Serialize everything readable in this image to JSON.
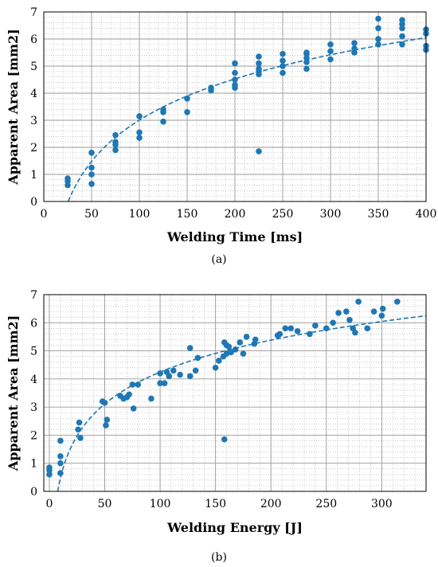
{
  "chart_data": [
    {
      "type": "scatter",
      "panel_label": "(a)",
      "xlabel": "Welding Time [ms]",
      "ylabel": "Apparent Area [mm2]",
      "xlim": [
        0,
        400
      ],
      "ylim": [
        0,
        7
      ],
      "xticks": [
        "0",
        "50",
        "100",
        "150",
        "200",
        "250",
        "300",
        "350",
        "400"
      ],
      "yticks": [
        "0",
        "1",
        "2",
        "3",
        "4",
        "5",
        "6",
        "7"
      ],
      "grid": true,
      "minor_grid": true,
      "marker_color": "#1f77b4",
      "fit_color": "#1f77b4",
      "fit": {
        "style": "dashed",
        "x_start": 25.5,
        "x_end": 400,
        "y_end": 6.05
      },
      "series": [
        {
          "points": [
            [
              25,
              0.6
            ],
            [
              25,
              0.75
            ],
            [
              25,
              0.85
            ],
            [
              50,
              0.65
            ],
            [
              50,
              1.0
            ],
            [
              50,
              1.25
            ],
            [
              50,
              1.8
            ],
            [
              75,
              1.9
            ],
            [
              75,
              2.1
            ],
            [
              75,
              2.2
            ],
            [
              75,
              2.45
            ],
            [
              100,
              2.35
            ],
            [
              100,
              2.55
            ],
            [
              100,
              3.15
            ],
            [
              125,
              2.95
            ],
            [
              125,
              3.3
            ],
            [
              125,
              3.4
            ],
            [
              150,
              3.3
            ],
            [
              150,
              3.8
            ],
            [
              175,
              4.1
            ],
            [
              175,
              4.2
            ],
            [
              200,
              4.2
            ],
            [
              200,
              4.3
            ],
            [
              200,
              4.5
            ],
            [
              200,
              4.75
            ],
            [
              200,
              5.1
            ],
            [
              225,
              1.85
            ],
            [
              225,
              4.7
            ],
            [
              225,
              4.8
            ],
            [
              225,
              4.9
            ],
            [
              225,
              5.1
            ],
            [
              225,
              5.35
            ],
            [
              250,
              4.75
            ],
            [
              250,
              5.0
            ],
            [
              250,
              5.2
            ],
            [
              250,
              5.45
            ],
            [
              275,
              4.9
            ],
            [
              275,
              5.15
            ],
            [
              275,
              5.3
            ],
            [
              275,
              5.45
            ],
            [
              275,
              5.5
            ],
            [
              300,
              5.25
            ],
            [
              300,
              5.55
            ],
            [
              300,
              5.8
            ],
            [
              325,
              5.5
            ],
            [
              325,
              5.65
            ],
            [
              325,
              5.85
            ],
            [
              350,
              5.8
            ],
            [
              350,
              6.0
            ],
            [
              350,
              6.4
            ],
            [
              350,
              6.75
            ],
            [
              375,
              5.8
            ],
            [
              375,
              6.1
            ],
            [
              375,
              6.4
            ],
            [
              375,
              6.55
            ],
            [
              375,
              6.7
            ],
            [
              400,
              5.6
            ],
            [
              400,
              5.75
            ],
            [
              400,
              6.2
            ],
            [
              400,
              6.35
            ]
          ]
        }
      ]
    },
    {
      "type": "scatter",
      "panel_label": "(b)",
      "xlabel": "Welding Energy [J]",
      "ylabel": "Apparent Area [mm2]",
      "xlim": [
        -5,
        340
      ],
      "ylim": [
        0,
        7
      ],
      "xticks": [
        "0",
        "50",
        "100",
        "150",
        "200",
        "250",
        "300"
      ],
      "yticks": [
        "0",
        "1",
        "2",
        "3",
        "4",
        "5",
        "6",
        "7"
      ],
      "grid": true,
      "minor_grid": true,
      "marker_color": "#1f77b4",
      "fit_color": "#1f77b4",
      "fit": {
        "style": "dashed",
        "x_start": 7.5,
        "x_end": 340,
        "y_end": 6.25
      },
      "series": [
        {
          "points": [
            [
              0,
              0.6
            ],
            [
              0,
              0.75
            ],
            [
              0,
              0.85
            ],
            [
              10,
              0.65
            ],
            [
              10,
              1.0
            ],
            [
              10,
              1.25
            ],
            [
              10,
              1.8
            ],
            [
              26,
              2.2
            ],
            [
              27,
              2.45
            ],
            [
              28,
              1.9
            ],
            [
              48,
              3.2
            ],
            [
              50,
              3.15
            ],
            [
              51,
              2.35
            ],
            [
              52,
              2.55
            ],
            [
              64,
              3.4
            ],
            [
              67,
              3.3
            ],
            [
              70,
              3.35
            ],
            [
              72,
              3.45
            ],
            [
              75,
              3.8
            ],
            [
              76,
              2.95
            ],
            [
              80,
              3.8
            ],
            [
              92,
              3.3
            ],
            [
              100,
              3.85
            ],
            [
              100,
              4.2
            ],
            [
              104,
              3.85
            ],
            [
              106,
              4.25
            ],
            [
              108,
              4.1
            ],
            [
              112,
              4.3
            ],
            [
              118,
              4.15
            ],
            [
              127,
              4.1
            ],
            [
              127,
              5.1
            ],
            [
              132,
              4.3
            ],
            [
              134,
              4.75
            ],
            [
              150,
              4.4
            ],
            [
              153,
              4.65
            ],
            [
              157,
              4.8
            ],
            [
              158,
              1.85
            ],
            [
              158,
              5.3
            ],
            [
              160,
              4.9
            ],
            [
              160,
              5.2
            ],
            [
              162,
              5.15
            ],
            [
              164,
              4.95
            ],
            [
              168,
              5.05
            ],
            [
              172,
              5.3
            ],
            [
              175,
              4.9
            ],
            [
              178,
              5.5
            ],
            [
              185,
              5.25
            ],
            [
              186,
              5.4
            ],
            [
              206,
              5.55
            ],
            [
              208,
              5.6
            ],
            [
              213,
              5.8
            ],
            [
              218,
              5.8
            ],
            [
              224,
              5.7
            ],
            [
              235,
              5.6
            ],
            [
              240,
              5.9
            ],
            [
              250,
              5.8
            ],
            [
              256,
              6.0
            ],
            [
              261,
              6.35
            ],
            [
              268,
              6.4
            ],
            [
              271,
              6.1
            ],
            [
              274,
              5.8
            ],
            [
              276,
              5.65
            ],
            [
              279,
              6.75
            ],
            [
              287,
              5.8
            ],
            [
              293,
              6.4
            ],
            [
              300,
              6.25
            ],
            [
              301,
              6.5
            ],
            [
              314,
              6.75
            ]
          ]
        }
      ]
    }
  ]
}
